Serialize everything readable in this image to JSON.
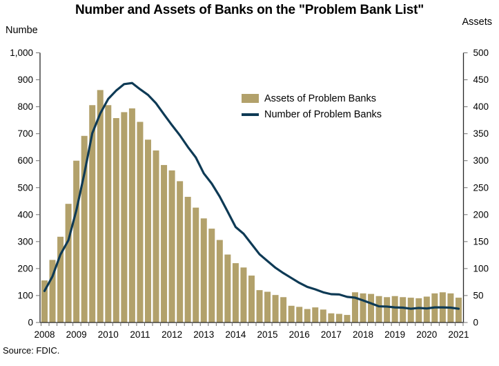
{
  "title": "Number and Assets of Banks on the \"Problem Bank List\"",
  "left_axis_title": "Numbe",
  "right_axis_title": "Assets",
  "source": "Source: FDIC.",
  "colors": {
    "bar": "#b2a16b",
    "line": "#0e3a55",
    "axis": "#262626",
    "tick": "#6e6e6e",
    "text": "#000000",
    "background": "#ffffff"
  },
  "chart_data": {
    "type": "bar",
    "subtype": "combo-bar-line",
    "title": "Number and Assets of Banks on the \"Problem Bank List\"",
    "xlabel": "",
    "ylabel_left": "Numbe",
    "ylabel_right": "Assets",
    "grid": false,
    "legend_position": "upper-center-right",
    "categories": [
      "2008 Q2",
      "2008 Q3",
      "2008 Q4",
      "2009 Q1",
      "2009 Q2",
      "2009 Q3",
      "2009 Q4",
      "2010 Q1",
      "2010 Q2",
      "2010 Q3",
      "2010 Q4",
      "2011 Q1",
      "2011 Q2",
      "2011 Q3",
      "2011 Q4",
      "2012 Q1",
      "2012 Q2",
      "2012 Q3",
      "2012 Q4",
      "2013 Q1",
      "2013 Q2",
      "2013 Q3",
      "2013 Q4",
      "2014 Q1",
      "2014 Q2",
      "2014 Q3",
      "2014 Q4",
      "2015 Q1",
      "2015 Q2",
      "2015 Q3",
      "2015 Q4",
      "2016 Q1",
      "2016 Q2",
      "2016 Q3",
      "2016 Q4",
      "2017 Q1",
      "2017 Q2",
      "2017 Q3",
      "2017 Q4",
      "2018 Q1",
      "2018 Q2",
      "2018 Q3",
      "2018 Q4",
      "2019 Q1",
      "2019 Q2",
      "2019 Q3",
      "2019 Q4",
      "2020 Q1",
      "2020 Q2",
      "2020 Q3",
      "2020 Q4",
      "2021 Q1",
      "2021 Q2"
    ],
    "x_tick_labels": [
      "2008",
      "2009",
      "2010",
      "2011",
      "2012",
      "2013",
      "2014",
      "2015",
      "2016",
      "2017",
      "2018",
      "2019",
      "2020",
      "2021"
    ],
    "series": [
      {
        "name": "Assets of Problem Banks",
        "type": "bar",
        "axis": "right",
        "values": [
          78,
          116,
          159,
          220,
          300,
          346,
          403,
          431,
          403,
          379,
          390,
          397,
          372,
          339,
          319,
          292,
          282,
          262,
          233,
          213,
          193,
          174,
          153,
          126,
          110,
          102,
          87,
          60,
          57,
          51,
          47,
          31,
          29,
          25,
          28,
          24,
          17,
          16,
          14,
          56,
          54,
          53,
          49,
          47,
          49,
          47,
          46,
          45,
          48,
          54,
          56,
          54,
          46
        ]
      },
      {
        "name": "Number of Problem Banks",
        "type": "line",
        "axis": "left",
        "values": [
          117,
          171,
          252,
          305,
          416,
          552,
          702,
          775,
          829,
          860,
          884,
          888,
          865,
          844,
          813,
          772,
          732,
          694,
          651,
          612,
          553,
          515,
          467,
          411,
          354,
          329,
          291,
          253,
          228,
          203,
          183,
          165,
          147,
          132,
          123,
          112,
          105,
          104,
          95,
          92,
          82,
          71,
          60,
          59,
          56,
          55,
          51,
          54,
          52,
          56,
          56,
          55,
          51
        ]
      }
    ],
    "left_axis": {
      "min": 0,
      "max": 1000,
      "step": 100,
      "tick_labels": [
        "0",
        "100",
        "200",
        "300",
        "400",
        "500",
        "600",
        "700",
        "800",
        "900",
        "1,000"
      ]
    },
    "right_axis": {
      "min": 0,
      "max": 500,
      "step": 50,
      "tick_labels": [
        "0",
        "50",
        "100",
        "150",
        "200",
        "250",
        "300",
        "350",
        "400",
        "450",
        "500"
      ]
    }
  }
}
